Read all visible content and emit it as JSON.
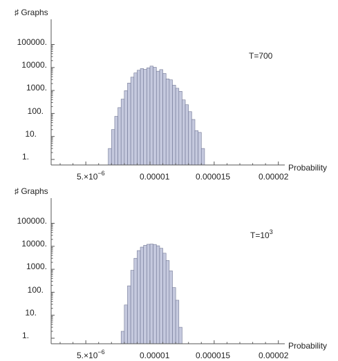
{
  "chart_data": [
    {
      "type": "bar",
      "y_scale": "log",
      "ylabel": "♯ Graphs",
      "xlabel": "Probability",
      "annotation": {
        "base": "T=700",
        "sup": ""
      },
      "x_ticks": [
        {
          "value": 5e-06,
          "mantissa": "5.×10",
          "exp": "−6"
        },
        {
          "value": 1e-05,
          "mantissa": "0.00001",
          "exp": ""
        },
        {
          "value": 1.5e-05,
          "mantissa": "0.000015",
          "exp": ""
        },
        {
          "value": 2e-05,
          "mantissa": "0.00002",
          "exp": ""
        }
      ],
      "y_ticks": [
        {
          "value": 1,
          "label": "1."
        },
        {
          "value": 10,
          "label": "10."
        },
        {
          "value": 100,
          "label": "100."
        },
        {
          "value": 1000,
          "label": "1000."
        },
        {
          "value": 10000,
          "label": "10000."
        },
        {
          "value": 100000,
          "label": "100000."
        }
      ],
      "xlim": [
        2.3e-06,
        2.05e-05
      ],
      "ylim": [
        0.5,
        400000
      ],
      "bins": {
        "start": 6.75e-06,
        "width": 2.5e-07
      },
      "values": [
        3,
        20,
        75,
        180,
        420,
        980,
        2100,
        3800,
        5800,
        7600,
        9000,
        8300,
        9700,
        11500,
        10200,
        6900,
        8100,
        5500,
        3200,
        2900,
        1700,
        1250,
        920,
        390,
        240,
        120,
        55,
        18,
        15,
        3
      ]
    },
    {
      "type": "bar",
      "y_scale": "log",
      "ylabel": "♯ Graphs",
      "xlabel": "Probability",
      "annotation": {
        "base": "T=10",
        "sup": "3"
      },
      "x_ticks": [
        {
          "value": 5e-06,
          "mantissa": "5.×10",
          "exp": "−6"
        },
        {
          "value": 1e-05,
          "mantissa": "0.00001",
          "exp": ""
        },
        {
          "value": 1.5e-05,
          "mantissa": "0.000015",
          "exp": ""
        },
        {
          "value": 2e-05,
          "mantissa": "0.00002",
          "exp": ""
        }
      ],
      "y_ticks": [
        {
          "value": 1,
          "label": "1."
        },
        {
          "value": 10,
          "label": "10."
        },
        {
          "value": 100,
          "label": "100."
        },
        {
          "value": 1000,
          "label": "1000."
        },
        {
          "value": 10000,
          "label": "10000."
        },
        {
          "value": 100000,
          "label": "100000."
        }
      ],
      "xlim": [
        2.3e-06,
        2.05e-05
      ],
      "ylim": [
        0.5,
        400000
      ],
      "bins": {
        "start": 7.75e-06,
        "width": 2.5e-07
      },
      "values": [
        2,
        28,
        190,
        900,
        3000,
        6500,
        9200,
        11000,
        12200,
        12500,
        12000,
        10500,
        8200,
        5000,
        2400,
        850,
        160,
        45,
        3
      ]
    }
  ]
}
